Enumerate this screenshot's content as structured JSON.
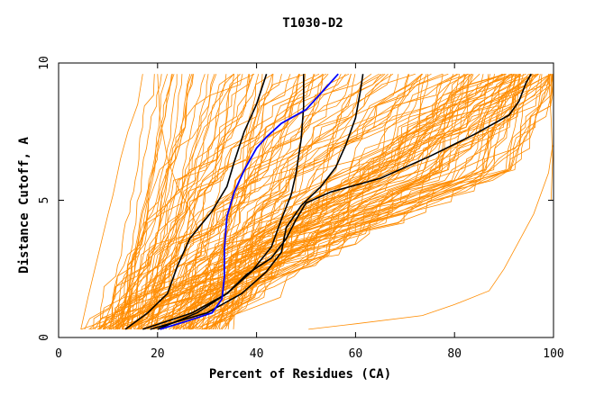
{
  "chart_data": {
    "type": "line",
    "title": "T1030-D2",
    "xlabel": "Percent of Residues (CA)",
    "ylabel": "Distance Cutoff, A",
    "xlim": [
      0,
      100
    ],
    "ylim": [
      0,
      10
    ],
    "x_ticks": [
      "0",
      "20",
      "40",
      "60",
      "80",
      "100"
    ],
    "y_ticks": [
      "0",
      "5",
      "10"
    ],
    "grid": false,
    "colors": {
      "background_models": "#ff8c00",
      "reference_models": "#000000",
      "highlighted_model": "#0000ff"
    },
    "highlighted_series": {
      "name": "",
      "color": "#0000ff",
      "points": [
        [
          20.5,
          0.3
        ],
        [
          26,
          0.6
        ],
        [
          31,
          0.9
        ],
        [
          33,
          1.4
        ],
        [
          33.5,
          2.2
        ],
        [
          33.5,
          3.2
        ],
        [
          34,
          4.4
        ],
        [
          35.5,
          5.3
        ],
        [
          37.5,
          6.1
        ],
        [
          40,
          6.9
        ],
        [
          42,
          7.3
        ],
        [
          45,
          7.8
        ],
        [
          50,
          8.3
        ],
        [
          54,
          9.1
        ],
        [
          56.5,
          9.6
        ]
      ]
    },
    "reference_series": [
      {
        "name": "",
        "color": "#000000",
        "points": [
          [
            13.5,
            0.3
          ],
          [
            18,
            0.9
          ],
          [
            22,
            1.6
          ],
          [
            24,
            2.6
          ],
          [
            26.5,
            3.6
          ],
          [
            31,
            4.6
          ],
          [
            34,
            5.5
          ],
          [
            35.5,
            6.4
          ],
          [
            37.5,
            7.5
          ],
          [
            40,
            8.5
          ],
          [
            42,
            9.6
          ]
        ]
      },
      {
        "name": "",
        "color": "#000000",
        "points": [
          [
            17,
            0.3
          ],
          [
            27,
            0.9
          ],
          [
            34,
            1.6
          ],
          [
            39,
            2.4
          ],
          [
            43,
            3.3
          ],
          [
            45,
            4.3
          ],
          [
            47,
            5.2
          ],
          [
            48,
            6.0
          ],
          [
            49,
            7.2
          ],
          [
            49.5,
            8.4
          ],
          [
            49.5,
            9.6
          ]
        ]
      },
      {
        "name": "",
        "color": "#000000",
        "points": [
          [
            18.5,
            0.3
          ],
          [
            30,
            0.9
          ],
          [
            37,
            1.6
          ],
          [
            42,
            2.4
          ],
          [
            45,
            3.1
          ],
          [
            46,
            4.0
          ],
          [
            49,
            4.8
          ],
          [
            53,
            5.5
          ],
          [
            56,
            6.2
          ],
          [
            58,
            7.0
          ],
          [
            60,
            8.0
          ],
          [
            61,
            9.0
          ],
          [
            61.5,
            9.6
          ]
        ]
      },
      {
        "name": "",
        "color": "#000000",
        "points": [
          [
            20,
            0.3
          ],
          [
            28,
            0.9
          ],
          [
            34,
            1.6
          ],
          [
            38,
            2.3
          ],
          [
            43,
            2.9
          ],
          [
            46,
            3.6
          ],
          [
            48,
            4.3
          ],
          [
            50,
            4.9
          ],
          [
            55,
            5.3
          ],
          [
            65,
            5.8
          ],
          [
            75,
            6.6
          ],
          [
            84,
            7.4
          ],
          [
            91,
            8.1
          ],
          [
            93,
            8.6
          ],
          [
            94.5,
            9.3
          ],
          [
            95.5,
            9.6
          ]
        ]
      }
    ],
    "background_series_count": 150,
    "background_series_note": "many overlapping model curves spanning from the lower left to the upper right of the plot"
  }
}
